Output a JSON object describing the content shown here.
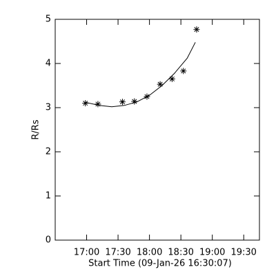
{
  "chart_data": {
    "type": "scatter",
    "ylabel": "R/Rs",
    "xlabel": "Start Time (09-Jan-26 16:30:07)",
    "points": {
      "x": [
        16.98,
        17.18,
        17.57,
        17.76,
        17.96,
        18.17,
        18.36,
        18.54,
        18.75
      ],
      "y": [
        3.1,
        3.08,
        3.13,
        3.14,
        3.25,
        3.53,
        3.65,
        3.83,
        4.77
      ]
    },
    "fit": {
      "x": [
        16.98,
        17.2,
        17.4,
        17.6,
        17.8,
        18.0,
        18.2,
        18.4,
        18.6,
        18.73
      ],
      "y": [
        3.12,
        3.05,
        3.02,
        3.05,
        3.13,
        3.28,
        3.5,
        3.78,
        4.12,
        4.48
      ]
    },
    "color": "#000000",
    "xlim": [
      16.5,
      19.75
    ],
    "ylim": [
      0,
      5
    ],
    "xticks": [
      {
        "value": 17,
        "label": "17:00"
      },
      {
        "value": 17.5,
        "label": "17:30"
      },
      {
        "value": 18,
        "label": "18:00"
      },
      {
        "value": 18.5,
        "label": "18:30"
      },
      {
        "value": 19,
        "label": "19:00"
      },
      {
        "value": 19.5,
        "label": "19:30"
      }
    ],
    "yticks": [
      0,
      1,
      2,
      3,
      4,
      5
    ]
  }
}
